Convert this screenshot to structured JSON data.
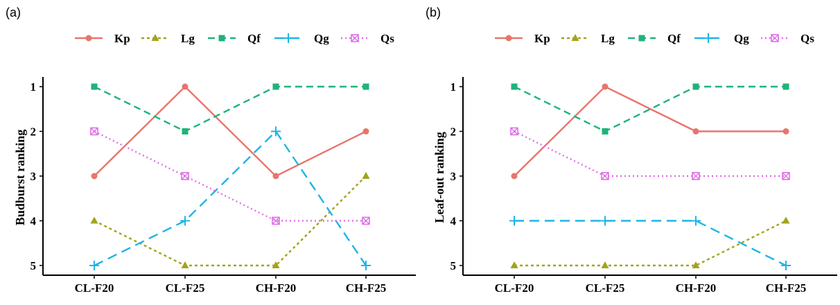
{
  "chart_data": [
    {
      "type": "line",
      "panel_label": "(a)",
      "categories": [
        "CL-F20",
        "CL-F25",
        "CH-F20",
        "CH-F25"
      ],
      "ylabel": "Budburst ranking",
      "xlabel": "",
      "y_ticks": [
        "1",
        "2",
        "3",
        "4",
        "5"
      ],
      "ylim": [
        1,
        5
      ],
      "y_reversed": true,
      "grid": false,
      "legend_position": "top",
      "series": [
        {
          "name": "Kp",
          "values": [
            3,
            1,
            3,
            2
          ],
          "color": "#E8756C",
          "dash": "solid",
          "marker": "circle"
        },
        {
          "name": "Lg",
          "values": [
            4,
            5,
            5,
            3
          ],
          "color": "#A3A31D",
          "dash": "dotted",
          "marker": "triangle"
        },
        {
          "name": "Qf",
          "values": [
            1,
            2,
            1,
            1
          ],
          "color": "#1EB37A",
          "dash": "dashed",
          "marker": "square"
        },
        {
          "name": "Qg",
          "values": [
            5,
            4,
            2,
            5
          ],
          "color": "#1EB4E6",
          "dash": "longdash",
          "marker": "plus"
        },
        {
          "name": "Qs",
          "values": [
            2,
            3,
            4,
            4
          ],
          "color": "#DF6EE8",
          "dash": "dotted-fine",
          "marker": "boxx"
        }
      ]
    },
    {
      "type": "line",
      "panel_label": "(b)",
      "categories": [
        "CL-F20",
        "CL-F25",
        "CH-F20",
        "CH-F25"
      ],
      "ylabel": "Leaf-out ranking",
      "xlabel": "",
      "y_ticks": [
        "1",
        "2",
        "3",
        "4",
        "5"
      ],
      "ylim": [
        1,
        5
      ],
      "y_reversed": true,
      "grid": false,
      "legend_position": "top",
      "series": [
        {
          "name": "Kp",
          "values": [
            3,
            1,
            2,
            2
          ],
          "color": "#E8756C",
          "dash": "solid",
          "marker": "circle"
        },
        {
          "name": "Lg",
          "values": [
            5,
            5,
            5,
            4
          ],
          "color": "#A3A31D",
          "dash": "dotted",
          "marker": "triangle"
        },
        {
          "name": "Qf",
          "values": [
            1,
            2,
            1,
            1
          ],
          "color": "#1EB37A",
          "dash": "dashed",
          "marker": "square"
        },
        {
          "name": "Qg",
          "values": [
            4,
            4,
            4,
            5
          ],
          "color": "#1EB4E6",
          "dash": "longdash",
          "marker": "plus"
        },
        {
          "name": "Qs",
          "values": [
            2,
            3,
            3,
            3
          ],
          "color": "#DF6EE8",
          "dash": "dotted-fine",
          "marker": "boxx"
        }
      ]
    }
  ]
}
